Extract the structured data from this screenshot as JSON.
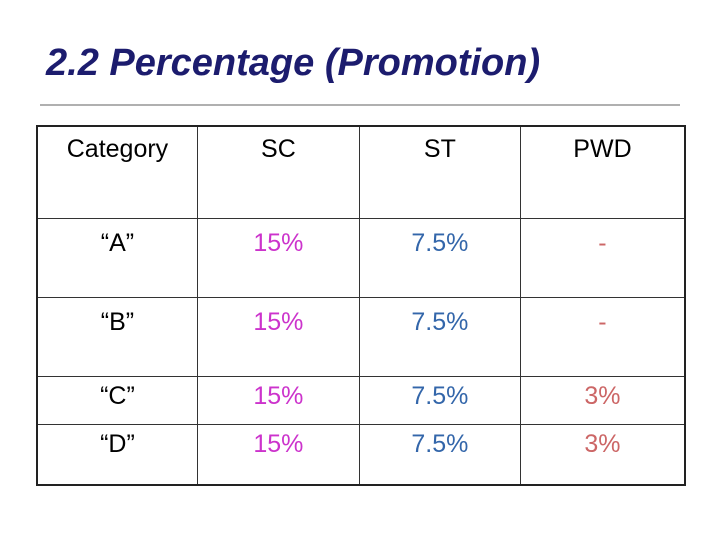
{
  "slide": {
    "title": "2.2 Percentage (Promotion)"
  },
  "table": {
    "headers": {
      "category": "Category",
      "sc": "SC",
      "st": "ST",
      "pwd": "PWD"
    },
    "rows": [
      {
        "category": "“A”",
        "sc": "15%",
        "st": "7.5%",
        "pwd": "-"
      },
      {
        "category": "“B”",
        "sc": "15%",
        "st": "7.5%",
        "pwd": "-"
      },
      {
        "category": "“C”",
        "sc": "15%",
        "st": "7.5%",
        "pwd": "3%"
      },
      {
        "category": "“D”",
        "sc": "15%",
        "st": "7.5%",
        "pwd": "3%"
      }
    ]
  },
  "colors": {
    "title": "#1c1c6e",
    "sc_values": "#cc33cc",
    "st_values": "#3366aa",
    "pwd_values": "#cc6666"
  }
}
